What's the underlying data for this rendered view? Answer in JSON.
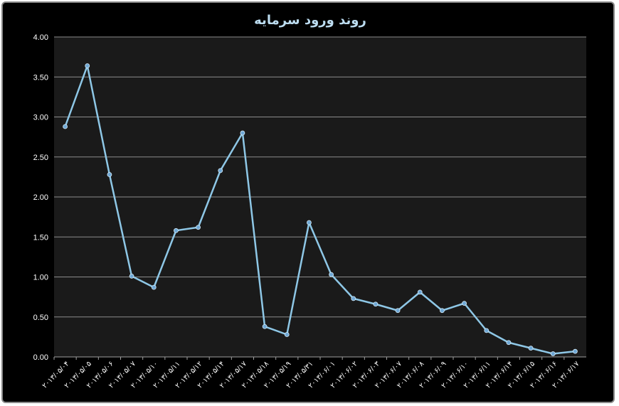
{
  "chart_data": {
    "type": "line",
    "title": "روند ورود سرمایه",
    "xlabel": "",
    "ylabel": "",
    "ylim": [
      0,
      4
    ],
    "yticks": [
      "0.00",
      "0.50",
      "1.00",
      "1.50",
      "2.00",
      "2.50",
      "3.00",
      "3.50",
      "4.00"
    ],
    "categories": [
      "۲۰۱۳/۰۵/۰۴",
      "۲۰۱۳/۰۵/۰۵",
      "۲۰۱۳/۰۵/۰۶",
      "۲۰۱۳/۰۵/۰۷",
      "۲۰۱۳/۰۵/۱۰",
      "۲۰۱۳/۰۵/۱۱",
      "۲۰۱۳/۰۵/۱۲",
      "۲۰۱۳/۰۵/۱۴",
      "۲۰۱۳/۰۵/۱۷",
      "۲۰۱۳/۰۵/۱۸",
      "۲۰۱۳/۰۵/۱۹",
      "۲۰۱۳/۰۵/۳۱",
      "۲۰۱۳/۰۶/۰۱",
      "۲۰۱۳/۰۶/۰۲",
      "۲۰۱۳/۰۶/۰۳",
      "۲۰۱۳/۰۶/۰۷",
      "۲۰۱۳/۰۶/۰۸",
      "۲۰۱۳/۰۶/۰۹",
      "۲۰۱۳/۰۶/۱۰",
      "۲۰۱۳/۰۶/۱۱",
      "۲۰۱۳/۰۶/۱۴",
      "۲۰۱۳/۰۶/۱۵",
      "۲۰۱۳/۰۶/۱۶",
      "۲۰۱۳/۰۶/۱۷"
    ],
    "series": [
      {
        "values": [
          2.88,
          3.64,
          2.28,
          1.01,
          0.87,
          1.58,
          1.62,
          2.33,
          2.8,
          0.38,
          0.28,
          1.68,
          1.03,
          0.73,
          0.66,
          0.58,
          0.81,
          0.58,
          0.67,
          0.33,
          0.18,
          0.11,
          0.04,
          0.07
        ]
      }
    ],
    "grid": true,
    "legend": "none",
    "colors": {
      "background": "#000000",
      "plot_area": "#1a1a1a",
      "line": "#8ec7e6",
      "marker": "#6fa8d6",
      "grid": "#8c8c8c",
      "title": "#bcdcf0"
    }
  }
}
